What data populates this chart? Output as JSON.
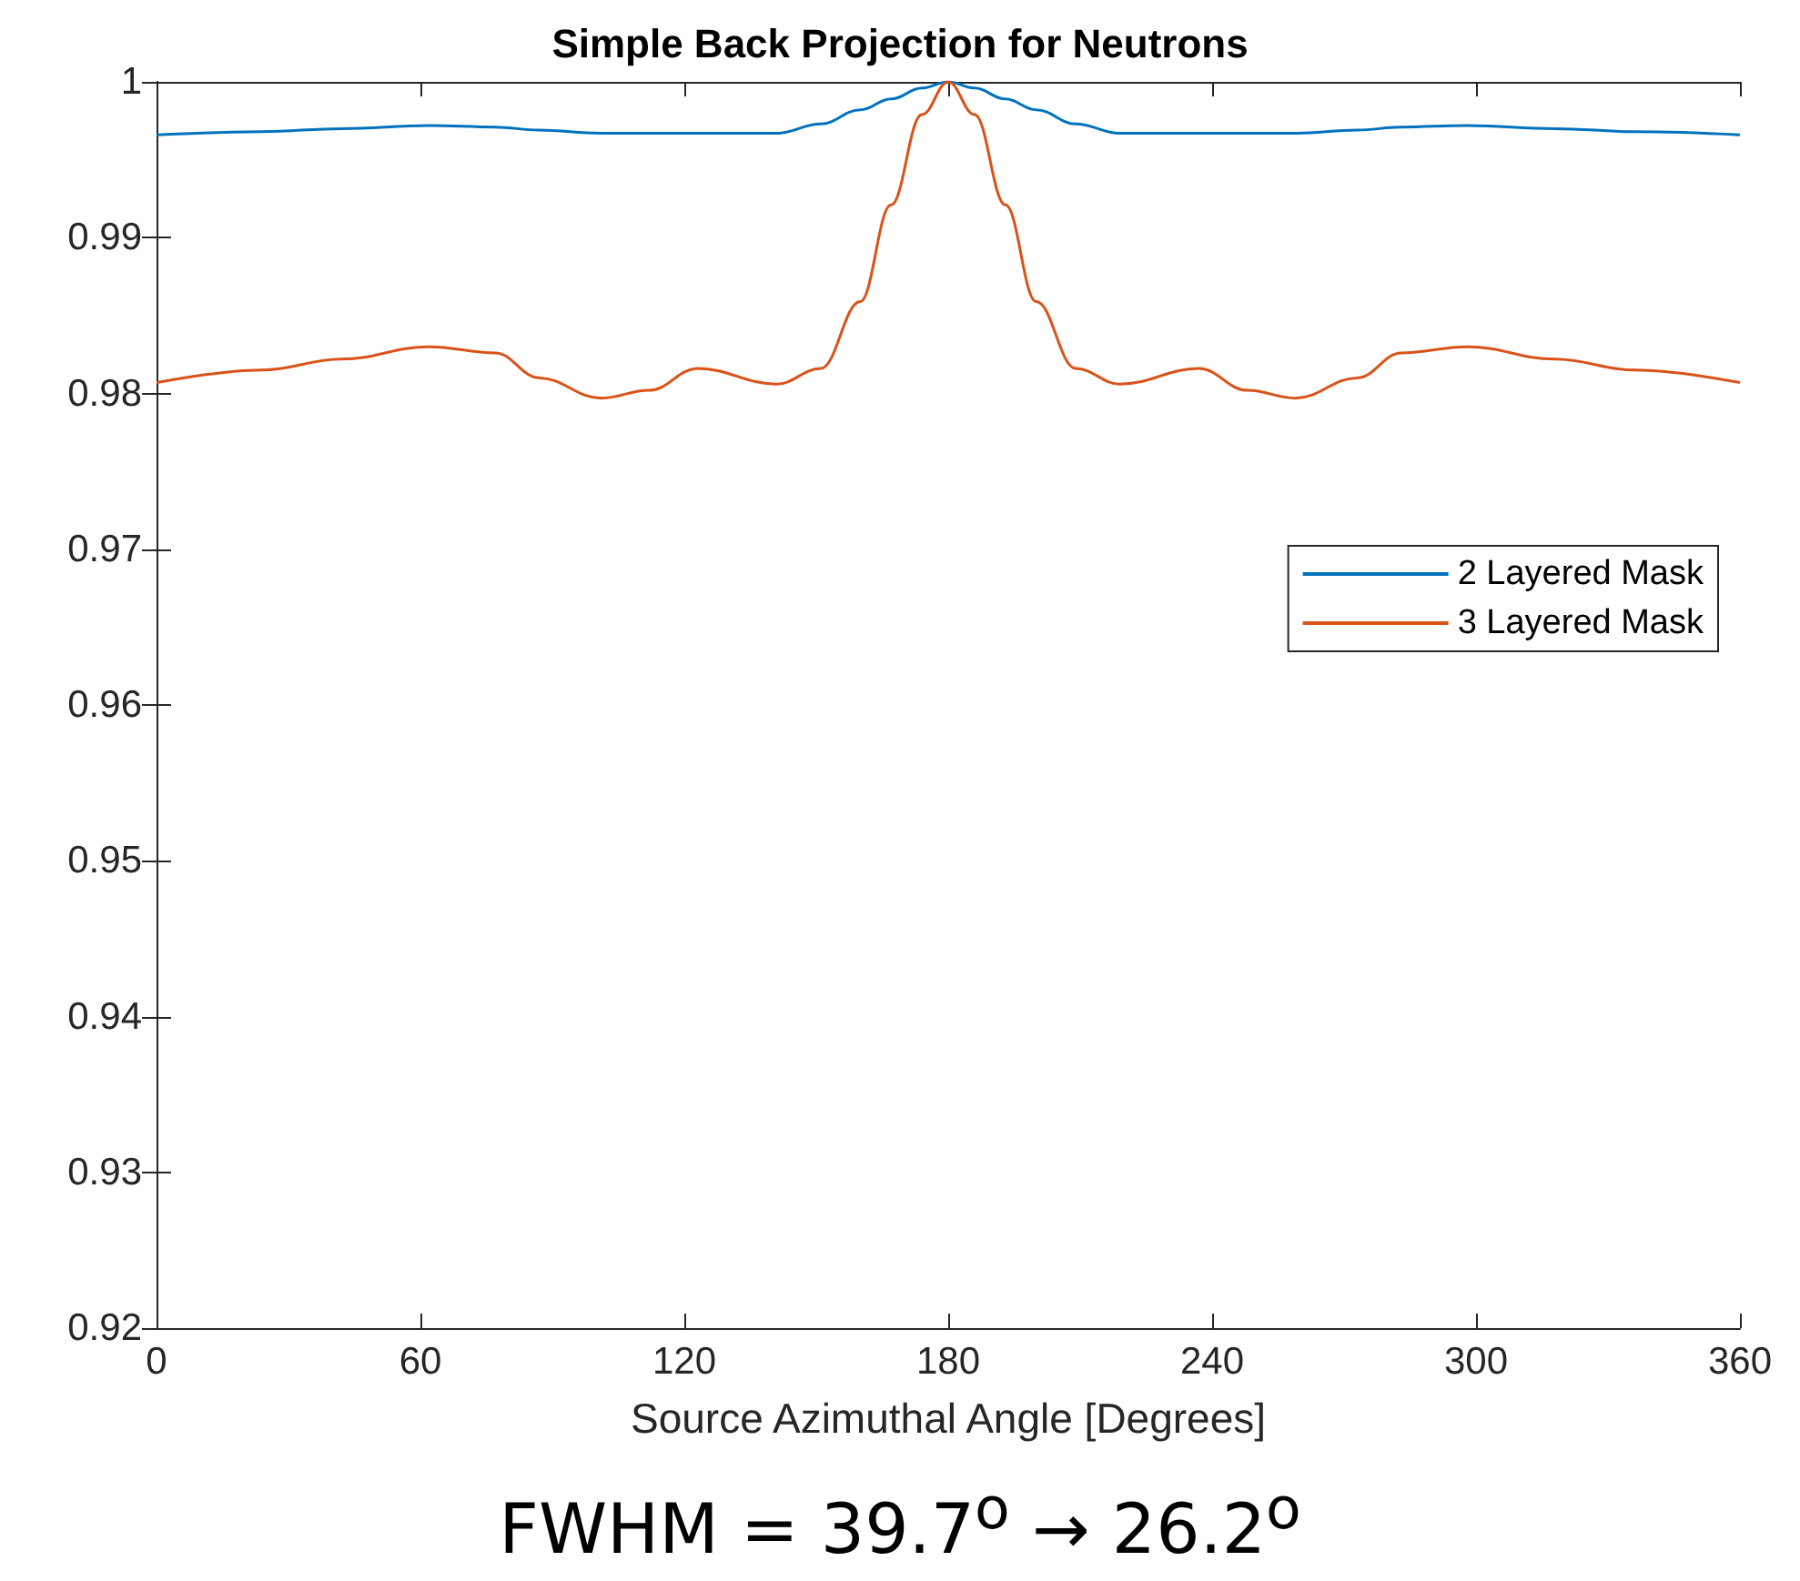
{
  "chart_data": {
    "type": "line",
    "title": "Simple Back Projection for Neutrons",
    "xlabel": "Source Azimuthal Angle [Degrees]",
    "annotations": [
      "FWHM = 39.7$^{o}$ → 26.2$^{o}$"
    ],
    "x": [
      0,
      24,
      42,
      62,
      77,
      87,
      101,
      112,
      123,
      141,
      151,
      160,
      167,
      174,
      180,
      186,
      193,
      200,
      209,
      219,
      237,
      248,
      259,
      273,
      283,
      298,
      318,
      336,
      360
    ],
    "series": [
      {
        "name": "2 Layered Mask",
        "color": "#0072bd",
        "values": [
          0.9966,
          0.9968,
          0.997,
          0.9972,
          0.9971,
          0.9969,
          0.9967,
          0.9967,
          0.9967,
          0.9967,
          0.9973,
          0.9982,
          0.9989,
          0.9996,
          1.0,
          0.9996,
          0.9989,
          0.9982,
          0.9973,
          0.9967,
          0.9967,
          0.9967,
          0.9967,
          0.9969,
          0.9971,
          0.9972,
          0.997,
          0.9968,
          0.9966
        ]
      },
      {
        "name": "3 Layered Mask",
        "color": "#d95319",
        "values": [
          0.9807,
          0.9815,
          0.9822,
          0.983,
          0.9826,
          0.981,
          0.9797,
          0.9802,
          0.9816,
          0.9806,
          0.9816,
          0.9859,
          0.9921,
          0.9979,
          1.0,
          0.9979,
          0.9921,
          0.9859,
          0.9816,
          0.9806,
          0.9816,
          0.9802,
          0.9797,
          0.981,
          0.9826,
          0.983,
          0.9822,
          0.9815,
          0.9807
        ]
      }
    ],
    "xlim": [
      0,
      360
    ],
    "xticks": [
      0,
      60,
      120,
      180,
      240,
      300,
      360
    ],
    "ylim": [
      0.92,
      1
    ],
    "yticks": [
      0.92,
      0.93,
      0.94,
      0.95,
      0.96,
      0.97,
      0.98,
      0.99,
      1
    ],
    "grid": false,
    "legend": "right",
    "marker": "none",
    "line_style": "solid"
  }
}
